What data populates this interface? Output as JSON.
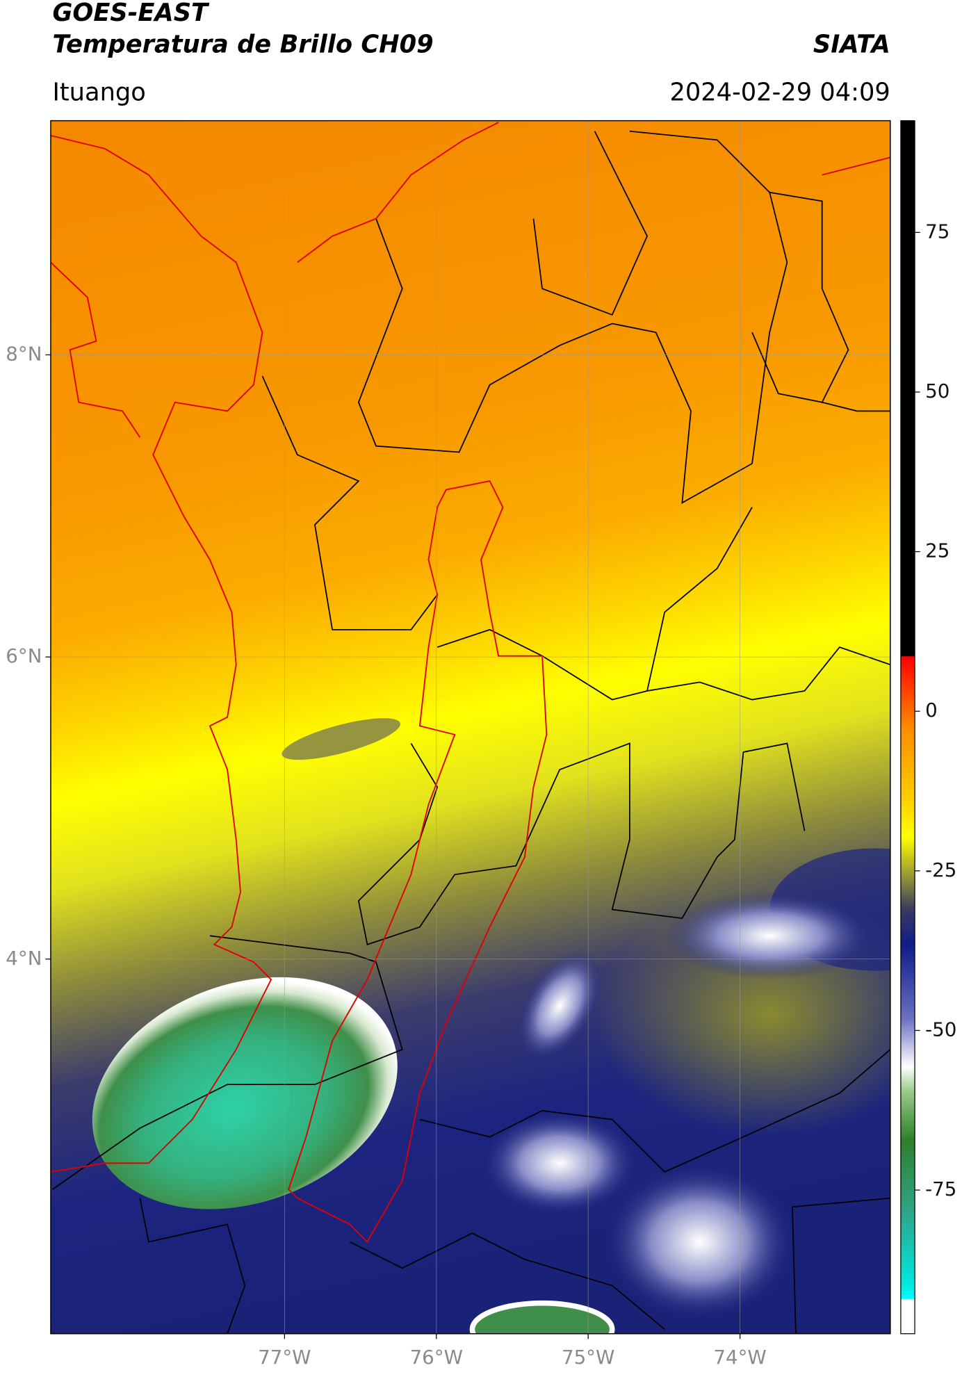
{
  "header": {
    "title": "GOES-EAST",
    "subtitle": "Temperatura de Brillo CH09",
    "brand": "SIATA",
    "location": "Ituango",
    "datetime": "2024-02-29 04:09"
  },
  "map": {
    "xlim": [
      -78.54,
      -73.01
    ],
    "ylim": [
      1.52,
      9.55
    ],
    "xticks": [
      {
        "value": -77,
        "label": "77°W"
      },
      {
        "value": -76,
        "label": "76°W"
      },
      {
        "value": -75,
        "label": "75°W"
      },
      {
        "value": -74,
        "label": "74°W"
      }
    ],
    "yticks": [
      {
        "value": 8,
        "label": "8°N"
      },
      {
        "value": 6,
        "label": "6°N"
      },
      {
        "value": 4,
        "label": "4°N"
      }
    ],
    "grid": true
  },
  "colorbar": {
    "lim": [
      -97.5,
      92.5
    ],
    "ticks": [
      75,
      50,
      25,
      0,
      -25,
      -50,
      -75
    ]
  }
}
